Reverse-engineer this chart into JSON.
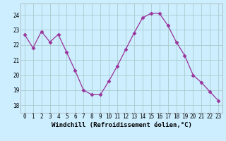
{
  "x": [
    0,
    1,
    2,
    3,
    4,
    5,
    6,
    7,
    8,
    9,
    10,
    11,
    12,
    13,
    14,
    15,
    16,
    17,
    18,
    19,
    20,
    21,
    22,
    23
  ],
  "y": [
    22.7,
    21.8,
    22.9,
    22.2,
    22.7,
    21.5,
    20.3,
    19.0,
    18.7,
    18.7,
    19.6,
    20.6,
    21.7,
    22.8,
    23.8,
    24.1,
    24.1,
    23.3,
    22.2,
    21.3,
    20.0,
    19.5,
    18.9,
    18.3
  ],
  "line_color": "#993399",
  "marker": "D",
  "marker_size": 2.5,
  "bg_color": "#cceeff",
  "grid_color": "#aacccc",
  "xlabel": "Windchill (Refroidissement éolien,°C)",
  "ylim": [
    17.5,
    24.75
  ],
  "xlim": [
    -0.5,
    23.5
  ],
  "yticks": [
    18,
    19,
    20,
    21,
    22,
    23,
    24
  ],
  "xticks": [
    0,
    1,
    2,
    3,
    4,
    5,
    6,
    7,
    8,
    9,
    10,
    11,
    12,
    13,
    14,
    15,
    16,
    17,
    18,
    19,
    20,
    21,
    22,
    23
  ],
  "tick_fontsize": 5.5,
  "xlabel_fontsize": 6.5
}
